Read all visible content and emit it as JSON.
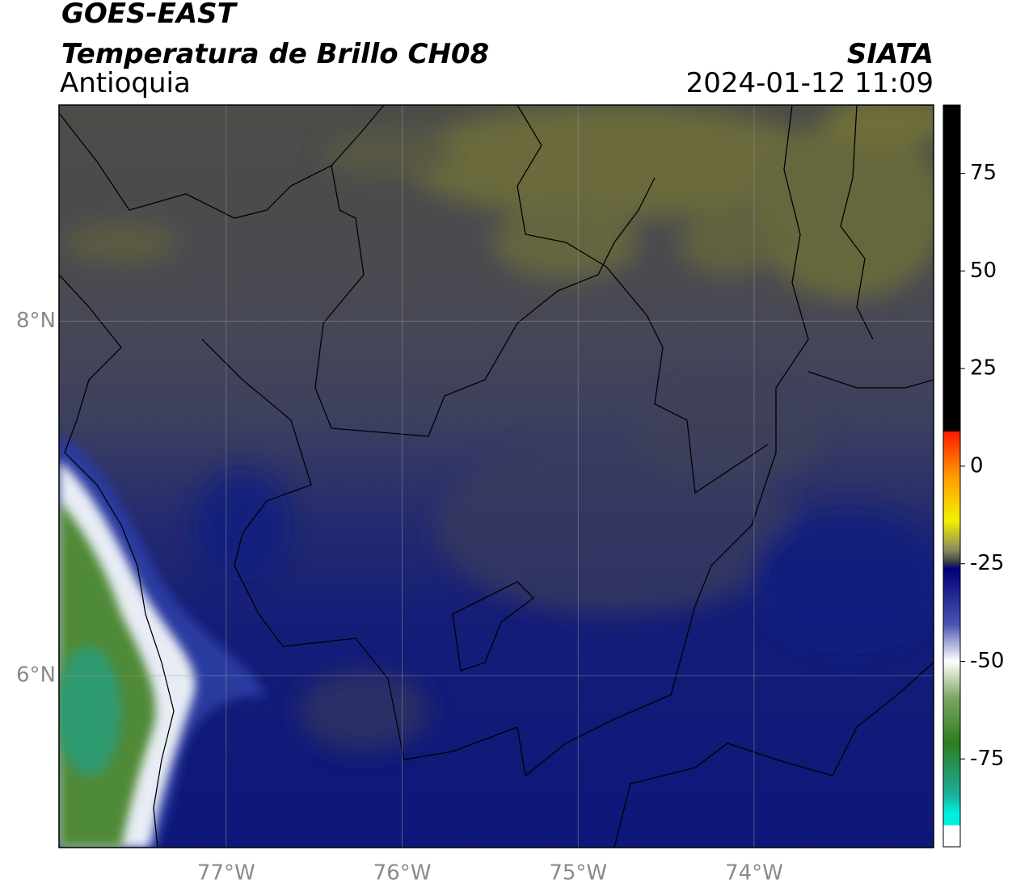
{
  "header": {
    "title": "GOES-EAST",
    "subtitle": "Temperatura de Brillo CH08",
    "region": "Antioquia",
    "source": "SIATA",
    "datetime": "2024-01-12 11:09"
  },
  "map": {
    "xlim": [
      -77.95,
      -72.98
    ],
    "ylim": [
      5.03,
      9.22
    ],
    "grid": true,
    "xticks": [
      {
        "value": -77,
        "label": "77°W"
      },
      {
        "value": -76,
        "label": "76°W"
      },
      {
        "value": -75,
        "label": "75°W"
      },
      {
        "value": -74,
        "label": "74°W"
      }
    ],
    "yticks": [
      {
        "value": 8,
        "label": "8°N"
      },
      {
        "value": 6,
        "label": "6°N"
      }
    ]
  },
  "colorbar": {
    "lim": [
      -97.5,
      92.5
    ],
    "ticks": [
      75,
      50,
      25,
      0,
      -25,
      -50,
      -75
    ]
  }
}
